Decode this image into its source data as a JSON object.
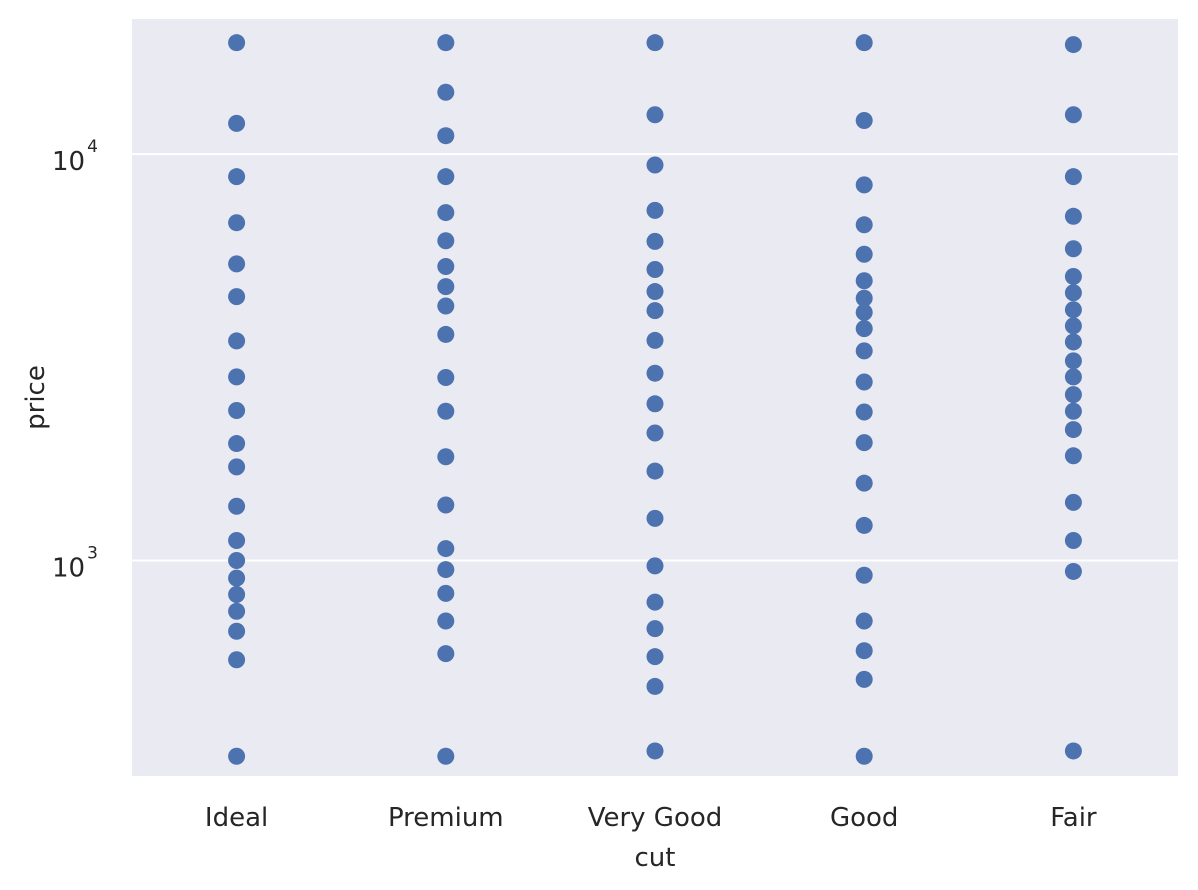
{
  "chart_data": {
    "type": "scatter",
    "title": "",
    "xlabel": "cut",
    "ylabel": "price",
    "yscale": "log",
    "ylim": [
      295,
      21500
    ],
    "grid": true,
    "legend": "none",
    "point_color": "#4c72b0",
    "background_color": "#eaeaf2",
    "grid_color": "#ffffff",
    "yticks": [
      {
        "value": 1000,
        "base": "10",
        "exp": "3"
      },
      {
        "value": 10000,
        "base": "10",
        "exp": "4"
      }
    ],
    "categories": [
      "Ideal",
      "Premium",
      "Very Good",
      "Good",
      "Fair"
    ],
    "points": [
      {
        "category": "Ideal",
        "values": [
          18800,
          11900,
          8800,
          6780,
          5370,
          4460,
          3470,
          2830,
          2340,
          1940,
          1700,
          1360,
          1120,
          1000,
          905,
          825,
          750,
          670,
          570,
          330
        ]
      },
      {
        "category": "Premium",
        "values": [
          18800,
          14200,
          11100,
          8800,
          7180,
          6120,
          5290,
          4720,
          4230,
          3600,
          2820,
          2330,
          1800,
          1370,
          1070,
          950,
          830,
          710,
          590,
          330
        ]
      },
      {
        "category": "Very Good",
        "values": [
          18800,
          12500,
          9400,
          7270,
          6100,
          5200,
          4590,
          4120,
          3480,
          2890,
          2430,
          2060,
          1660,
          1270,
          970,
          790,
          680,
          580,
          490,
          340
        ]
      },
      {
        "category": "Good",
        "values": [
          18800,
          12100,
          8400,
          6700,
          5670,
          4880,
          4420,
          4080,
          3720,
          3280,
          2750,
          2320,
          1950,
          1550,
          1220,
          920,
          710,
          600,
          510,
          330
        ]
      },
      {
        "category": "Fair",
        "values": [
          18600,
          12500,
          8800,
          7030,
          5850,
          5000,
          4560,
          4140,
          3780,
          3450,
          3100,
          2830,
          2560,
          2330,
          2100,
          1810,
          1390,
          1120,
          940,
          340
        ]
      }
    ]
  }
}
